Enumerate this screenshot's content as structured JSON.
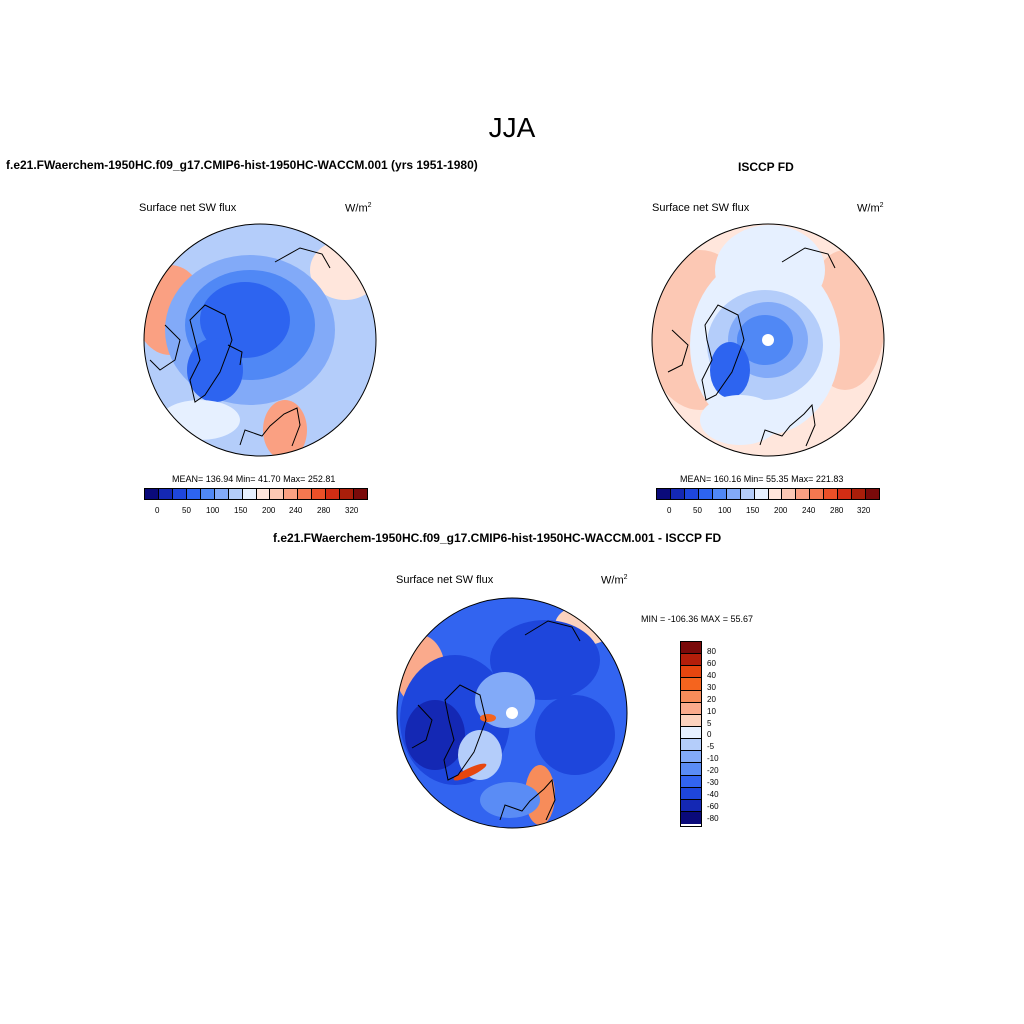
{
  "figure": {
    "title": "JJA"
  },
  "panels": [
    {
      "id": "model",
      "title": "f.e21.FWaerchem-1950HC.f09_g17.CMIP6-hist-1950HC-WACCM.001 (yrs 1951-1980)",
      "variable": "Surface net SW flux",
      "units_base": "W/m",
      "units_exp": "2",
      "stats": "MEAN= 136.94  Min=  41.70  Max= 252.81",
      "colorbar_ticks": [
        "0",
        "50",
        "100",
        "150",
        "200",
        "240",
        "280",
        "320"
      ]
    },
    {
      "id": "obs",
      "title": "ISCCP FD",
      "variable": "Surface net SW flux",
      "units_base": "W/m",
      "units_exp": "2",
      "stats": "MEAN= 160.16  Min=  55.35  Max= 221.83",
      "colorbar_ticks": [
        "0",
        "50",
        "100",
        "150",
        "200",
        "240",
        "280",
        "320"
      ]
    },
    {
      "id": "diff",
      "title": "f.e21.FWaerchem-1950HC.f09_g17.CMIP6-hist-1950HC-WACCM.001 - ISCCP FD",
      "variable": "Surface net SW flux",
      "units_base": "W/m",
      "units_exp": "2",
      "stats": "MIN = -106.36 MAX =  55.67",
      "colorbar_ticks": [
        "80",
        "60",
        "40",
        "30",
        "20",
        "10",
        "5",
        "0",
        "-5",
        "-10",
        "-20",
        "-30",
        "-40",
        "-60",
        "-80"
      ]
    }
  ],
  "colors": {
    "abs_palette": [
      "#0a0a7a",
      "#1428b4",
      "#1e46dc",
      "#2d64f0",
      "#5088f5",
      "#82aaf8",
      "#b4cdfa",
      "#e6f0ff",
      "#ffe6dc",
      "#fcc8b4",
      "#faa082",
      "#f57850",
      "#eb5028",
      "#d22d14",
      "#aa1e0a",
      "#7a0a0a"
    ],
    "diff_palette": [
      "#7a0a0a",
      "#b41e0a",
      "#e6460f",
      "#f5641e",
      "#f78c5a",
      "#faaa8c",
      "#fcd2be",
      "#e6f0ff",
      "#b4cdfa",
      "#82aaf8",
      "#5a8cf5",
      "#3264f0",
      "#1e46dc",
      "#1428b4",
      "#0a0a7a"
    ]
  }
}
